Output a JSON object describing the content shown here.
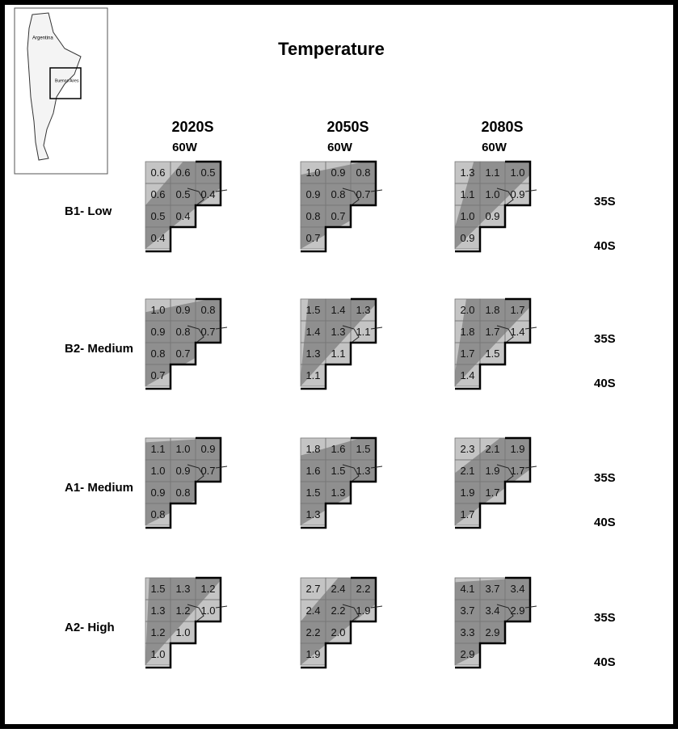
{
  "title": "Temperature",
  "inset": {
    "labels": [
      "Argentina",
      "Buenos Aires"
    ]
  },
  "columns": [
    {
      "period": "2020S",
      "longitude": "60W"
    },
    {
      "period": "2050S",
      "longitude": "60W"
    },
    {
      "period": "2080S",
      "longitude": "60W"
    }
  ],
  "rows": [
    {
      "scenario": "B1- Low",
      "latitudes": [
        "35S",
        "40S"
      ],
      "maps": [
        [
          [
            "0.6",
            "0.6",
            "0.5"
          ],
          [
            "0.6",
            "0.5",
            "0.4"
          ],
          [
            "0.5",
            "0.4"
          ],
          [
            "0.4"
          ]
        ],
        [
          [
            "1.0",
            "0.9",
            "0.8"
          ],
          [
            "0.9",
            "0.8",
            "0.7"
          ],
          [
            "0.8",
            "0.7"
          ],
          [
            "0.7"
          ]
        ],
        [
          [
            "1.3",
            "1.1",
            "1.0"
          ],
          [
            "1.1",
            "1.0",
            "0.9"
          ],
          [
            "1.0",
            "0.9"
          ],
          [
            "0.9"
          ]
        ]
      ]
    },
    {
      "scenario": "B2- Medium",
      "latitudes": [
        "35S",
        "40S"
      ],
      "maps": [
        [
          [
            "1.0",
            "0.9",
            "0.8"
          ],
          [
            "0.9",
            "0.8",
            "0.7"
          ],
          [
            "0.8",
            "0.7"
          ],
          [
            "0.7"
          ]
        ],
        [
          [
            "1.5",
            "1.4",
            "1.3"
          ],
          [
            "1.4",
            "1.3",
            "1.1"
          ],
          [
            "1.3",
            "1.1"
          ],
          [
            "1.1"
          ]
        ],
        [
          [
            "2.0",
            "1.8",
            "1.7"
          ],
          [
            "1.8",
            "1.7",
            "1.4"
          ],
          [
            "1.7",
            "1.5"
          ],
          [
            "1.4"
          ]
        ]
      ]
    },
    {
      "scenario": "A1- Medium",
      "latitudes": [
        "35S",
        "40S"
      ],
      "maps": [
        [
          [
            "1.1",
            "1.0",
            "0.9"
          ],
          [
            "1.0",
            "0.9",
            "0.7"
          ],
          [
            "0.9",
            "0.8"
          ],
          [
            "0.8"
          ]
        ],
        [
          [
            "1.8",
            "1.6",
            "1.5"
          ],
          [
            "1.6",
            "1.5",
            "1.3"
          ],
          [
            "1.5",
            "1.3"
          ],
          [
            "1.3"
          ]
        ],
        [
          [
            "2.3",
            "2.1",
            "1.9"
          ],
          [
            "2.1",
            "1.9",
            "1.7"
          ],
          [
            "1.9",
            "1.7"
          ],
          [
            "1.7"
          ]
        ]
      ]
    },
    {
      "scenario": "A2- High",
      "latitudes": [
        "35S",
        "40S"
      ],
      "maps": [
        [
          [
            "1.5",
            "1.3",
            "1.2"
          ],
          [
            "1.3",
            "1.2",
            "1.0"
          ],
          [
            "1.2",
            "1.0"
          ],
          [
            "1.0"
          ]
        ],
        [
          [
            "2.7",
            "2.4",
            "2.2"
          ],
          [
            "2.4",
            "2.2",
            "1.9"
          ],
          [
            "2.2",
            "2.0"
          ],
          [
            "1.9"
          ]
        ],
        [
          [
            "4.1",
            "3.7",
            "3.4"
          ],
          [
            "3.7",
            "3.4",
            "2.9"
          ],
          [
            "3.3",
            "2.9"
          ],
          [
            "2.9"
          ]
        ]
      ]
    }
  ]
}
